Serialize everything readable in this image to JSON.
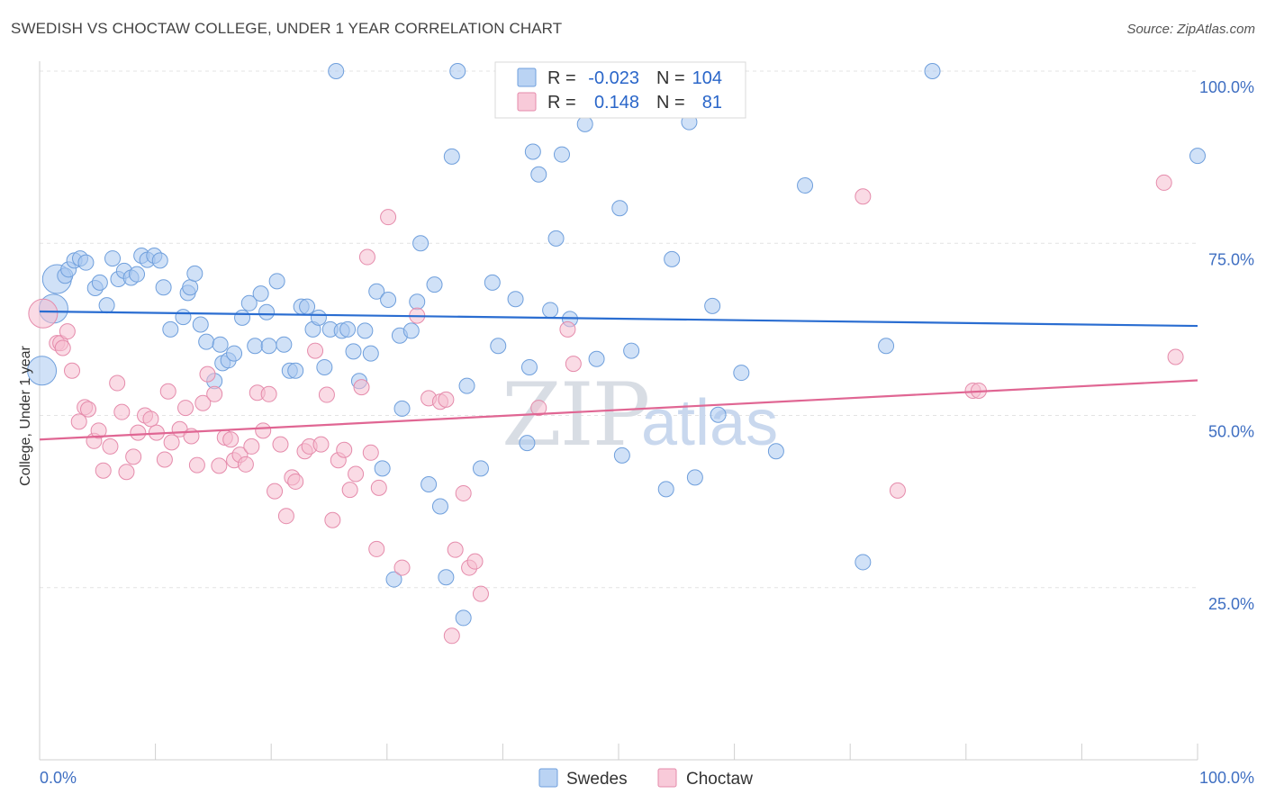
{
  "header": {
    "title": "SWEDISH VS CHOCTAW COLLEGE, UNDER 1 YEAR CORRELATION CHART",
    "source": "Source: ZipAtlas.com"
  },
  "watermark": {
    "part1": "ZIP",
    "part2": "atlas"
  },
  "legend": {
    "r_label": "R =",
    "n_label": "N =",
    "rows": [
      {
        "r": "-0.023",
        "n": "104",
        "color": "#a9c8f0",
        "stroke": "#6f9fdc"
      },
      {
        "r": "0.148",
        "n": "81",
        "color": "#f6bdd0",
        "stroke": "#e58bab"
      }
    ]
  },
  "bottom_legend": [
    {
      "label": "Swedes",
      "color": "#a9c8f0",
      "stroke": "#6f9fdc"
    },
    {
      "label": "Choctaw",
      "color": "#f6bdd0",
      "stroke": "#e58bab"
    }
  ],
  "chart_data": {
    "type": "scatter",
    "title": "SWEDISH VS CHOCTAW COLLEGE, UNDER 1 YEAR CORRELATION CHART",
    "xlabel": "",
    "ylabel": "College, Under 1 year",
    "xlim": [
      0,
      100
    ],
    "ylim": [
      0,
      100
    ],
    "x_tick_labels": [
      "0.0%",
      "100.0%"
    ],
    "y_tick_labels": [
      "25.0%",
      "50.0%",
      "75.0%",
      "100.0%"
    ],
    "y_ticks": [
      25,
      50,
      75,
      100
    ],
    "grid": true,
    "series": [
      {
        "name": "Swedes",
        "color": "#a9c8f0",
        "stroke": "#6f9fdc",
        "line_color": "#2a6dd1",
        "trend": [
          [
            0,
            65.1
          ],
          [
            100,
            63.0
          ]
        ],
        "points": [
          [
            0.2,
            56.5,
            1
          ],
          [
            1.2,
            65.5,
            1
          ],
          [
            1.5,
            69.8,
            1
          ],
          [
            2.2,
            70.3,
            0
          ],
          [
            2.5,
            71.2,
            0
          ],
          [
            3,
            72.5,
            0
          ],
          [
            3.5,
            72.8,
            0
          ],
          [
            4,
            72.2,
            0
          ],
          [
            4.8,
            68.5,
            0
          ],
          [
            5.2,
            69.3,
            0
          ],
          [
            5.8,
            66,
            0
          ],
          [
            6.3,
            72.8,
            0
          ],
          [
            6.8,
            69.8,
            0
          ],
          [
            7.3,
            71,
            0
          ],
          [
            7.9,
            70,
            0
          ],
          [
            8.4,
            70.5,
            0
          ],
          [
            8.8,
            73.2,
            0
          ],
          [
            9.3,
            72.6,
            0
          ],
          [
            9.9,
            73.2,
            0
          ],
          [
            10.4,
            72.5,
            0
          ],
          [
            10.7,
            68.6,
            0
          ],
          [
            11.3,
            62.5,
            0
          ],
          [
            12.4,
            64.3,
            0
          ],
          [
            12.8,
            67.8,
            0
          ],
          [
            13,
            68.6,
            0
          ],
          [
            13.4,
            70.6,
            0
          ],
          [
            13.9,
            63.2,
            0
          ],
          [
            14.4,
            60.7,
            0
          ],
          [
            15.1,
            55,
            0
          ],
          [
            15.6,
            60.3,
            0
          ],
          [
            15.8,
            57.6,
            0
          ],
          [
            16.3,
            58,
            0
          ],
          [
            16.8,
            59,
            0
          ],
          [
            17.5,
            64.2,
            0
          ],
          [
            18.1,
            66.3,
            0
          ],
          [
            18.6,
            60.1,
            0
          ],
          [
            19.1,
            67.7,
            0
          ],
          [
            19.6,
            65,
            0
          ],
          [
            19.8,
            60.1,
            0
          ],
          [
            20.5,
            69.5,
            0
          ],
          [
            21.1,
            60.3,
            0
          ],
          [
            21.6,
            56.5,
            0
          ],
          [
            22.1,
            56.5,
            0
          ],
          [
            22.6,
            65.8,
            0
          ],
          [
            23.1,
            65.8,
            0
          ],
          [
            23.6,
            62.5,
            0
          ],
          [
            24.1,
            64.2,
            0
          ],
          [
            24.6,
            57,
            0
          ],
          [
            25.1,
            62.5,
            0
          ],
          [
            25.6,
            100,
            0
          ],
          [
            26.1,
            62.3,
            0
          ],
          [
            26.6,
            62.5,
            0
          ],
          [
            27.1,
            59.3,
            0
          ],
          [
            27.6,
            55,
            0
          ],
          [
            28.1,
            62.3,
            0
          ],
          [
            28.6,
            59,
            0
          ],
          [
            29.1,
            68,
            0
          ],
          [
            29.6,
            42.3,
            0
          ],
          [
            30.1,
            66.8,
            0
          ],
          [
            30.6,
            26.2,
            0
          ],
          [
            31.1,
            61.6,
            0
          ],
          [
            31.3,
            51,
            0
          ],
          [
            32.1,
            62.3,
            0
          ],
          [
            32.6,
            66.5,
            0
          ],
          [
            32.9,
            75,
            0
          ],
          [
            33.6,
            40,
            0
          ],
          [
            34.1,
            69,
            0
          ],
          [
            34.6,
            36.8,
            0
          ],
          [
            35.1,
            26.5,
            0
          ],
          [
            35.6,
            87.6,
            0
          ],
          [
            36.1,
            100,
            0
          ],
          [
            36.6,
            20.6,
            0
          ],
          [
            36.9,
            54.3,
            0
          ],
          [
            38.1,
            42.3,
            0
          ],
          [
            39.1,
            69.3,
            0
          ],
          [
            39.6,
            60.1,
            0
          ],
          [
            40.1,
            99.6,
            0
          ],
          [
            41.1,
            66.9,
            0
          ],
          [
            42.1,
            46,
            0
          ],
          [
            42.3,
            57,
            0
          ],
          [
            42.6,
            88.3,
            0
          ],
          [
            43.1,
            85,
            0
          ],
          [
            44.1,
            65.3,
            0
          ],
          [
            44.6,
            75.7,
            0
          ],
          [
            45.1,
            87.9,
            0
          ],
          [
            45.8,
            64,
            0
          ],
          [
            46.6,
            100,
            0
          ],
          [
            47.1,
            92.3,
            0
          ],
          [
            48.1,
            58.2,
            0
          ],
          [
            50.1,
            80.1,
            0
          ],
          [
            50.3,
            44.2,
            0
          ],
          [
            51.1,
            59.4,
            0
          ],
          [
            54.1,
            39.3,
            0
          ],
          [
            54.6,
            72.7,
            0
          ],
          [
            56.1,
            92.6,
            0
          ],
          [
            56.6,
            41,
            0
          ],
          [
            58.1,
            65.9,
            0
          ],
          [
            58.6,
            50.1,
            0
          ],
          [
            60.6,
            56.2,
            0
          ],
          [
            63.6,
            44.8,
            0
          ],
          [
            66.1,
            83.4,
            0
          ],
          [
            71.1,
            28.7,
            0
          ],
          [
            73.1,
            60.1,
            0
          ],
          [
            77.1,
            100,
            0
          ],
          [
            100,
            87.7,
            0
          ]
        ]
      },
      {
        "name": "Choctaw",
        "color": "#f6bdd0",
        "stroke": "#e58bab",
        "line_color": "#e06693",
        "trend": [
          [
            0,
            46.5
          ],
          [
            100,
            55.1
          ]
        ],
        "points": [
          [
            0.3,
            64.8,
            1
          ],
          [
            1.5,
            60.5,
            0
          ],
          [
            1.8,
            60.5,
            0
          ],
          [
            2,
            59.8,
            0
          ],
          [
            2.4,
            62.2,
            0
          ],
          [
            2.8,
            56.5,
            0
          ],
          [
            3.4,
            49.1,
            0
          ],
          [
            3.9,
            51.2,
            0
          ],
          [
            4.2,
            50.9,
            0
          ],
          [
            4.7,
            46.3,
            0
          ],
          [
            5.1,
            47.8,
            0
          ],
          [
            5.5,
            42,
            0
          ],
          [
            6.1,
            45.5,
            0
          ],
          [
            6.7,
            54.7,
            0
          ],
          [
            7.1,
            50.5,
            0
          ],
          [
            7.5,
            41.8,
            0
          ],
          [
            8.1,
            44,
            0
          ],
          [
            8.5,
            47.5,
            0
          ],
          [
            9.1,
            50,
            0
          ],
          [
            9.6,
            49.5,
            0
          ],
          [
            10.1,
            47.5,
            0
          ],
          [
            10.8,
            43.6,
            0
          ],
          [
            11.1,
            53.5,
            0
          ],
          [
            11.4,
            46.1,
            0
          ],
          [
            12.1,
            48,
            0
          ],
          [
            12.6,
            51.1,
            0
          ],
          [
            13.1,
            47,
            0
          ],
          [
            13.6,
            42.8,
            0
          ],
          [
            14.1,
            51.8,
            0
          ],
          [
            14.5,
            56,
            0
          ],
          [
            15.1,
            53.1,
            0
          ],
          [
            15.5,
            42.7,
            0
          ],
          [
            16,
            46.8,
            0
          ],
          [
            16.5,
            46.5,
            0
          ],
          [
            16.8,
            43.5,
            0
          ],
          [
            17.3,
            44.3,
            0
          ],
          [
            17.8,
            42.9,
            0
          ],
          [
            18.3,
            45.5,
            0
          ],
          [
            18.8,
            53.3,
            0
          ],
          [
            19.3,
            47.8,
            0
          ],
          [
            19.8,
            53.1,
            0
          ],
          [
            20.3,
            39,
            0
          ],
          [
            20.8,
            45.8,
            0
          ],
          [
            21.3,
            35.4,
            0
          ],
          [
            21.8,
            41,
            0
          ],
          [
            22.1,
            40.4,
            0
          ],
          [
            22.9,
            44.8,
            0
          ],
          [
            23.3,
            45.5,
            0
          ],
          [
            23.8,
            59.4,
            0
          ],
          [
            24.3,
            45.8,
            0
          ],
          [
            24.8,
            53,
            0
          ],
          [
            25.3,
            34.8,
            0
          ],
          [
            25.8,
            43.5,
            0
          ],
          [
            26.3,
            45,
            0
          ],
          [
            26.8,
            39.2,
            0
          ],
          [
            27.3,
            41.5,
            0
          ],
          [
            27.8,
            54.1,
            0
          ],
          [
            28.3,
            73,
            0
          ],
          [
            28.6,
            44.6,
            0
          ],
          [
            29.1,
            30.6,
            0
          ],
          [
            29.3,
            39.5,
            0
          ],
          [
            30.1,
            78.8,
            0
          ],
          [
            31.3,
            27.9,
            0
          ],
          [
            32.6,
            64.5,
            0
          ],
          [
            33.6,
            52.5,
            0
          ],
          [
            34.6,
            52,
            0
          ],
          [
            35.1,
            52.3,
            0
          ],
          [
            35.6,
            18,
            0
          ],
          [
            35.9,
            30.5,
            0
          ],
          [
            36.6,
            38.7,
            0
          ],
          [
            37.1,
            27.9,
            0
          ],
          [
            37.6,
            28.8,
            0
          ],
          [
            38.1,
            24.1,
            0
          ],
          [
            43.1,
            51.1,
            0
          ],
          [
            45.6,
            62.5,
            0
          ],
          [
            46.1,
            57.5,
            0
          ],
          [
            71.1,
            81.8,
            0
          ],
          [
            74.1,
            39.1,
            0
          ],
          [
            80.6,
            53.6,
            0
          ],
          [
            81.1,
            53.6,
            0
          ],
          [
            97.1,
            83.8,
            0
          ],
          [
            98.1,
            58.5,
            0
          ]
        ]
      }
    ]
  }
}
